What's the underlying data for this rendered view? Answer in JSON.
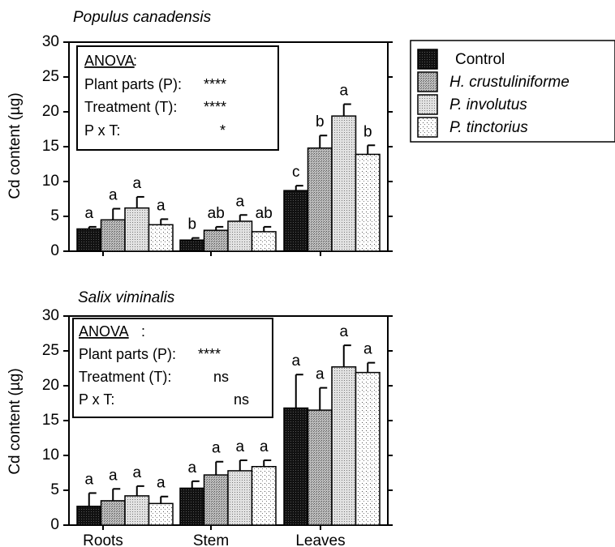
{
  "legend": {
    "entries": [
      {
        "label": "Control",
        "italic": false,
        "fill": "dark"
      },
      {
        "label": "H. crustuliniforme",
        "italic": true,
        "fill": "gray"
      },
      {
        "label": "P. involutus",
        "italic": true,
        "fill": "light"
      },
      {
        "label": "P. tinctorius",
        "italic": true,
        "fill": "dots"
      }
    ]
  },
  "colors": {
    "dark": "#1c1c1c",
    "gray": "#a6a6a6",
    "light": "#d4d4d4",
    "dots": "#ffffff"
  },
  "chart_data": [
    {
      "type": "bar",
      "title": "Populus canadensis",
      "ylabel": "Cd content (µg)",
      "ylim": [
        0,
        30
      ],
      "yticks": [
        "0",
        "5",
        "10",
        "15",
        "20",
        "25",
        "30"
      ],
      "categories": [
        "Roots",
        "Stem",
        "Leaves"
      ],
      "show_xlabels": false,
      "series": [
        {
          "name": "Control",
          "values": [
            3.2,
            1.6,
            8.7
          ],
          "errors": [
            0.3,
            0.3,
            0.7
          ],
          "letters": [
            "a",
            "b",
            "c"
          ]
        },
        {
          "name": "H. crustuliniforme",
          "values": [
            4.5,
            3.0,
            14.8
          ],
          "errors": [
            1.6,
            0.5,
            1.8
          ],
          "letters": [
            "a",
            "ab",
            "b"
          ]
        },
        {
          "name": "P. involutus",
          "values": [
            6.2,
            4.3,
            19.4
          ],
          "errors": [
            1.6,
            0.9,
            1.7
          ],
          "letters": [
            "a",
            "a",
            "a"
          ]
        },
        {
          "name": "P. tinctorius",
          "values": [
            3.8,
            2.8,
            13.9
          ],
          "errors": [
            0.8,
            0.7,
            1.3
          ],
          "letters": [
            "a",
            "ab",
            "b"
          ]
        }
      ],
      "anova": {
        "heading": "ANOVA",
        "rows": [
          {
            "label": "Plant parts (P):",
            "value": "****"
          },
          {
            "label": "Treatment (T):",
            "value": "****"
          },
          {
            "label": "P x T:",
            "value": "*"
          }
        ]
      }
    },
    {
      "type": "bar",
      "title": "Salix viminalis",
      "ylabel": "Cd content (µg)",
      "ylim": [
        0,
        30
      ],
      "yticks": [
        "0",
        "5",
        "10",
        "15",
        "20",
        "25",
        "30"
      ],
      "categories": [
        "Roots",
        "Stem",
        "Leaves"
      ],
      "show_xlabels": true,
      "series": [
        {
          "name": "Control",
          "values": [
            2.7,
            5.3,
            16.8
          ],
          "errors": [
            1.9,
            1.0,
            4.8
          ],
          "letters": [
            "a",
            "a",
            "a"
          ]
        },
        {
          "name": "H. crustuliniforme",
          "values": [
            3.5,
            7.2,
            16.5
          ],
          "errors": [
            1.7,
            1.9,
            3.2
          ],
          "letters": [
            "a",
            "a",
            "a"
          ]
        },
        {
          "name": "P. involutus",
          "values": [
            4.2,
            7.8,
            22.7
          ],
          "errors": [
            1.4,
            1.5,
            3.1
          ],
          "letters": [
            "a",
            "a",
            "a"
          ]
        },
        {
          "name": "P. tinctorius",
          "values": [
            3.1,
            8.4,
            21.9
          ],
          "errors": [
            1.0,
            0.9,
            1.4
          ],
          "letters": [
            "a",
            "a",
            "a"
          ]
        }
      ],
      "anova": {
        "heading": "ANOVA",
        "rows": [
          {
            "label": "Plant parts (P):",
            "value": "****"
          },
          {
            "label": "Treatment (T):",
            "value": "ns"
          },
          {
            "label": "P x T:",
            "value": "ns"
          }
        ]
      }
    }
  ]
}
